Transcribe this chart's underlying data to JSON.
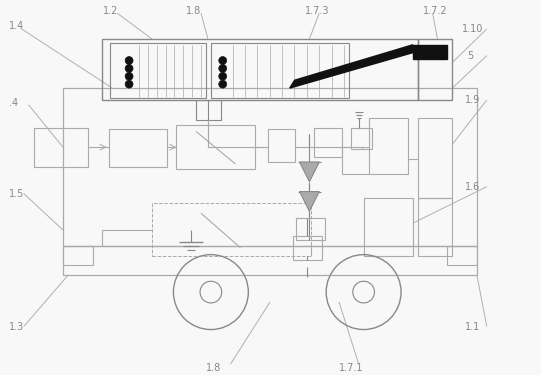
{
  "bg_color": "#f8f8f8",
  "lc": "#aaaaaa",
  "dc": "#888888",
  "bk": "#111111",
  "lbl": "#888888",
  "fig_width": 5.41,
  "fig_height": 3.75,
  "dpi": 100
}
